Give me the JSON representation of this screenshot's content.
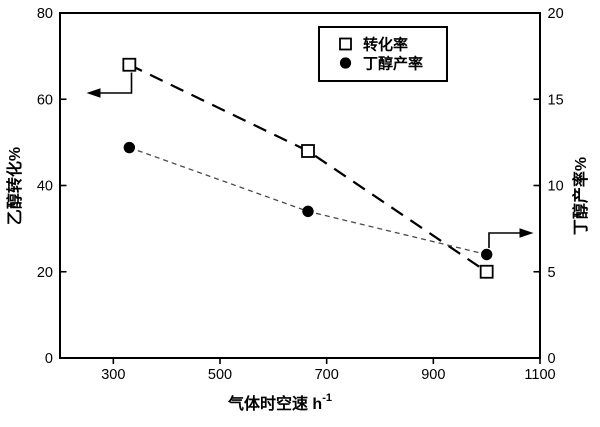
{
  "chart_data": {
    "type": "line",
    "title": "",
    "x": [
      330,
      665,
      1000
    ],
    "series": [
      {
        "name": "转化率",
        "axis": "left",
        "marker": "open-square",
        "line_style": "long-dash",
        "values": [
          68,
          48,
          20
        ]
      },
      {
        "name": "丁醇产率",
        "axis": "right",
        "marker": "filled-circle",
        "line_style": "short-dash",
        "values": [
          12.2,
          8.5,
          6.0
        ]
      }
    ],
    "xlabel_main": "气体时空速 h",
    "xlabel_sup": "-1",
    "ylabel_left": "乙醇转化%",
    "ylabel_right": "丁醇产率%",
    "xlim": [
      200,
      1100
    ],
    "x_ticks": [
      300,
      500,
      700,
      900,
      1100
    ],
    "ylim_left": [
      0,
      80
    ],
    "y_ticks_left": [
      0,
      20,
      40,
      60,
      80
    ],
    "ylim_right": [
      0,
      20
    ],
    "y_ticks_right": [
      0,
      5,
      10,
      15,
      20
    ],
    "grid": false,
    "legend_position": "top-center",
    "annotations": [
      "elbow arrow from first open-square point toward left axis",
      "elbow arrow from last filled-circle point toward right axis"
    ]
  },
  "legend": {
    "items": [
      {
        "symbol": "open-square",
        "label": "转化率"
      },
      {
        "symbol": "filled-circle",
        "label": "丁醇产率"
      }
    ]
  },
  "colors": {
    "background": "#ffffff",
    "frame": "#000000",
    "series_conversion": "#000000",
    "series_yield_line": "#4a4a4a",
    "marker_fill_circle": "#000000",
    "marker_square_fill": "#ffffff"
  }
}
